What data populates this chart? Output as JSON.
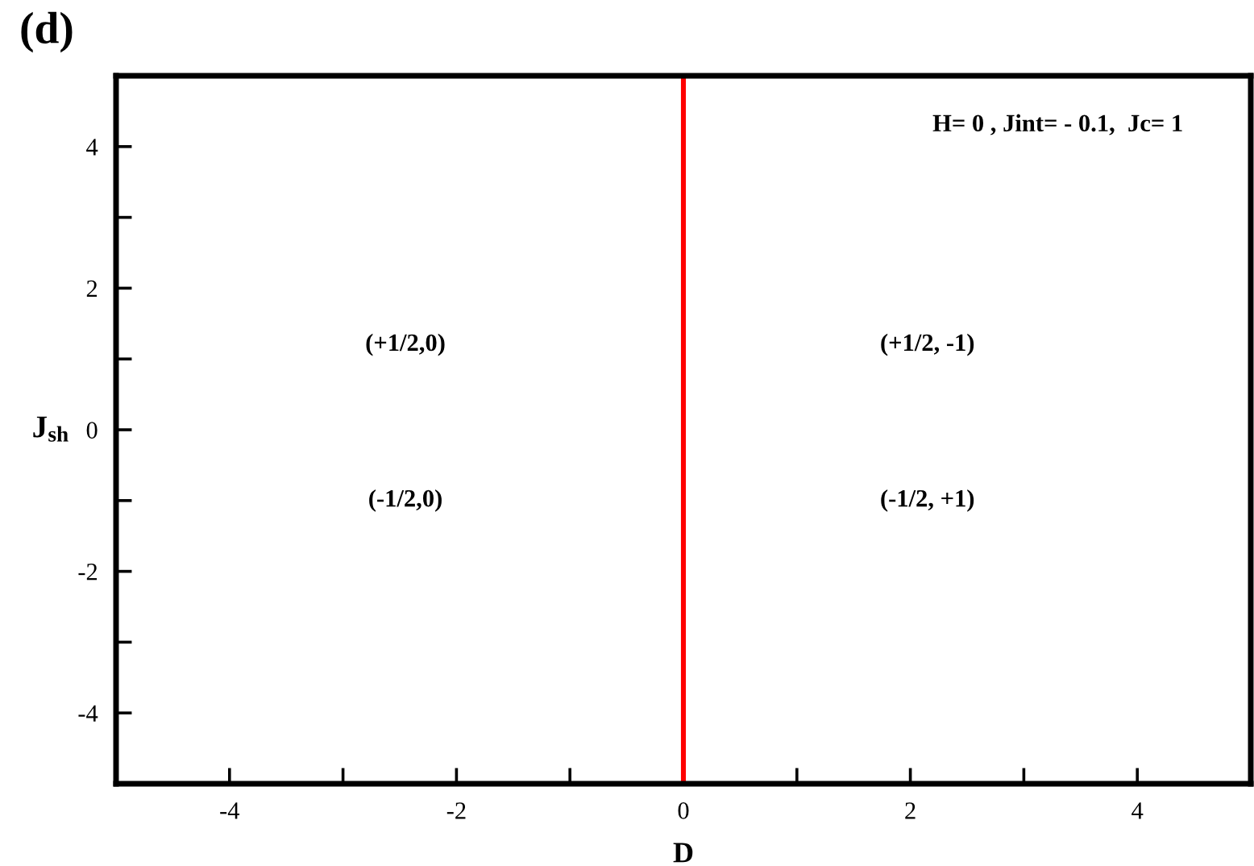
{
  "chart_data": {
    "type": "line",
    "title": "(d)",
    "xlabel": "D",
    "ylabel": "J$_{sh}$",
    "xlim": [
      -5,
      5
    ],
    "ylim": [
      -5,
      5
    ],
    "xticks": [
      -4,
      {
        "value": -3,
        "label": null
      },
      -2,
      {
        "value": -1,
        "label": null
      },
      0,
      {
        "value": 1,
        "label": null
      },
      2,
      {
        "value": 3,
        "label": null
      },
      4
    ],
    "yticks": [
      -4,
      {
        "value": -3,
        "label": null
      },
      -2,
      {
        "value": -1,
        "label": null
      },
      0,
      {
        "value": 1,
        "label": null
      },
      2,
      {
        "value": 3,
        "label": null
      },
      4
    ],
    "ref_lines": [
      {
        "axis": "x",
        "value": 0,
        "color": "#ff0000"
      }
    ],
    "annotations": [
      "H= 0 , Jint= - 0.1,  Jc= 1",
      "(+1/2,0)",
      "(-1/2,0)",
      "(+1/2, -1)",
      "(-1/2, +1)"
    ],
    "grid": false,
    "legend": false
  }
}
